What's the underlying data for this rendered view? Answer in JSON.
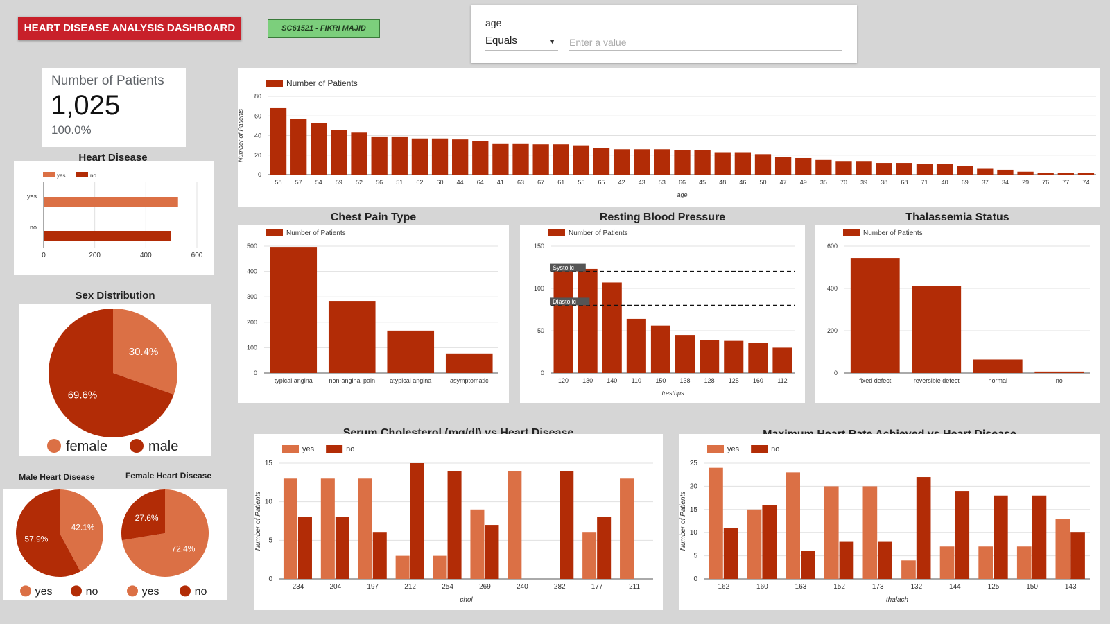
{
  "header": {
    "title": "HEART DISEASE ANALYSIS DASHBOARD",
    "author": "SC61521 - FIKRI MAJID"
  },
  "filter": {
    "field": "age",
    "operator": "Equals",
    "placeholder": "Enter a value"
  },
  "kpi": {
    "label": "Number of Patients",
    "value": "1,025",
    "percent": "100.0%"
  },
  "colors": {
    "primary": "#b22c06",
    "secondary": "#db7045",
    "title_bg": "#c8202a",
    "author_bg": "#7ccf7c"
  },
  "titles": {
    "heart_disease": "Heart Disease",
    "sex_distribution": "Sex Distribution",
    "male_heart_disease": "Male Heart Disease",
    "female_heart_disease": "Female Heart Disease",
    "chest_pain": "Chest Pain Type",
    "blood_pressure": "Resting Blood Pressure",
    "thal": "Thalassemia Status",
    "chol": "Serum Cholesterol (mg/dl) vs Heart Disease",
    "thalach": "Maximum Heart Rate Achieved vs Heart Disease"
  },
  "chart_data": [
    {
      "id": "age",
      "type": "bar",
      "title": "",
      "xlabel": "age",
      "ylabel": "Number of Patients",
      "ylim": [
        0,
        80
      ],
      "yticks": [
        0,
        20,
        40,
        60,
        80
      ],
      "legend": [
        "Number of Patients"
      ],
      "categories": [
        "58",
        "57",
        "54",
        "59",
        "52",
        "56",
        "51",
        "62",
        "60",
        "44",
        "64",
        "41",
        "63",
        "67",
        "61",
        "55",
        "65",
        "42",
        "43",
        "53",
        "66",
        "45",
        "48",
        "46",
        "50",
        "47",
        "49",
        "35",
        "70",
        "39",
        "38",
        "68",
        "71",
        "40",
        "69",
        "37",
        "34",
        "29",
        "76",
        "77",
        "74"
      ],
      "values": [
        68,
        57,
        53,
        46,
        43,
        39,
        39,
        37,
        37,
        36,
        34,
        32,
        32,
        31,
        31,
        30,
        27,
        26,
        26,
        26,
        25,
        25,
        23,
        23,
        21,
        18,
        17,
        15,
        14,
        14,
        12,
        12,
        11,
        11,
        9,
        6,
        5,
        3,
        2,
        2,
        2
      ]
    },
    {
      "id": "heart_disease",
      "type": "bar",
      "orientation": "horizontal",
      "title": "Heart Disease",
      "xlim": [
        0,
        600
      ],
      "xticks": [
        0,
        200,
        400,
        600
      ],
      "legend": [
        "yes",
        "no"
      ],
      "categories": [
        "yes",
        "no"
      ],
      "values": [
        526,
        499
      ]
    },
    {
      "id": "sex",
      "type": "pie",
      "title": "Sex Distribution",
      "labels": [
        "female",
        "male"
      ],
      "values": [
        30.4,
        69.6
      ],
      "value_labels": [
        "30.4%",
        "69.6%"
      ]
    },
    {
      "id": "male_hd",
      "type": "pie",
      "title": "Male Heart Disease",
      "labels": [
        "yes",
        "no"
      ],
      "values": [
        42.1,
        57.9
      ],
      "value_labels": [
        "42.1%",
        "57.9%"
      ]
    },
    {
      "id": "female_hd",
      "type": "pie",
      "title": "Female Heart Disease",
      "labels": [
        "yes",
        "no"
      ],
      "values": [
        72.4,
        27.6
      ],
      "value_labels": [
        "72.4%",
        "27.6%"
      ]
    },
    {
      "id": "chest_pain",
      "type": "bar",
      "title": "Chest Pain Type",
      "ylim": [
        0,
        500
      ],
      "yticks": [
        0,
        100,
        200,
        300,
        400,
        500
      ],
      "legend": [
        "Number of Patients"
      ],
      "categories": [
        "typical angina",
        "non-anginal pain",
        "atypical angina",
        "asymptomatic"
      ],
      "values": [
        497,
        284,
        167,
        77
      ]
    },
    {
      "id": "trestbps",
      "type": "bar",
      "title": "Resting Blood Pressure",
      "xlabel": "trestbps",
      "ylim": [
        0,
        150
      ],
      "yticks": [
        0,
        50,
        100,
        150
      ],
      "legend": [
        "Number of Patients"
      ],
      "categories": [
        "120",
        "130",
        "140",
        "110",
        "150",
        "138",
        "128",
        "125",
        "160",
        "112"
      ],
      "values": [
        128,
        123,
        107,
        64,
        56,
        45,
        39,
        38,
        36,
        30
      ],
      "reference_lines": [
        {
          "label": "Systolic",
          "value": 120
        },
        {
          "label": "Diastolic",
          "value": 80
        }
      ]
    },
    {
      "id": "thal",
      "type": "bar",
      "title": "Thalassemia Status",
      "ylim": [
        0,
        600
      ],
      "yticks": [
        0,
        200,
        400,
        600
      ],
      "legend": [
        "Number of Patients"
      ],
      "categories": [
        "fixed defect",
        "reversible defect",
        "normal",
        "no"
      ],
      "values": [
        544,
        410,
        64,
        7
      ]
    },
    {
      "id": "chol",
      "type": "bar",
      "title": "Serum Cholesterol (mg/dl) vs Heart Disease",
      "xlabel": "chol",
      "ylabel": "Number of Patients",
      "ylim": [
        0,
        15
      ],
      "yticks": [
        0,
        5,
        10,
        15
      ],
      "categories": [
        "234",
        "204",
        "197",
        "212",
        "254",
        "269",
        "240",
        "282",
        "177",
        "211"
      ],
      "series": [
        {
          "name": "yes",
          "values": [
            13,
            13,
            13,
            3,
            3,
            9,
            14,
            0,
            6,
            13
          ]
        },
        {
          "name": "no",
          "values": [
            8,
            8,
            6,
            15,
            14,
            7,
            0,
            14,
            8,
            0
          ]
        }
      ]
    },
    {
      "id": "thalach",
      "type": "bar",
      "title": "Maximum Heart Rate Achieved vs Heart Disease",
      "xlabel": "thalach",
      "ylabel": "Number of Patients",
      "ylim": [
        0,
        25
      ],
      "yticks": [
        0,
        5,
        10,
        15,
        20,
        25
      ],
      "categories": [
        "162",
        "160",
        "163",
        "152",
        "173",
        "132",
        "144",
        "125",
        "150",
        "143"
      ],
      "series": [
        {
          "name": "yes",
          "values": [
            24,
            15,
            23,
            20,
            20,
            4,
            7,
            7,
            7,
            13
          ]
        },
        {
          "name": "no",
          "values": [
            11,
            16,
            6,
            8,
            8,
            22,
            19,
            18,
            18,
            10
          ]
        }
      ]
    }
  ]
}
